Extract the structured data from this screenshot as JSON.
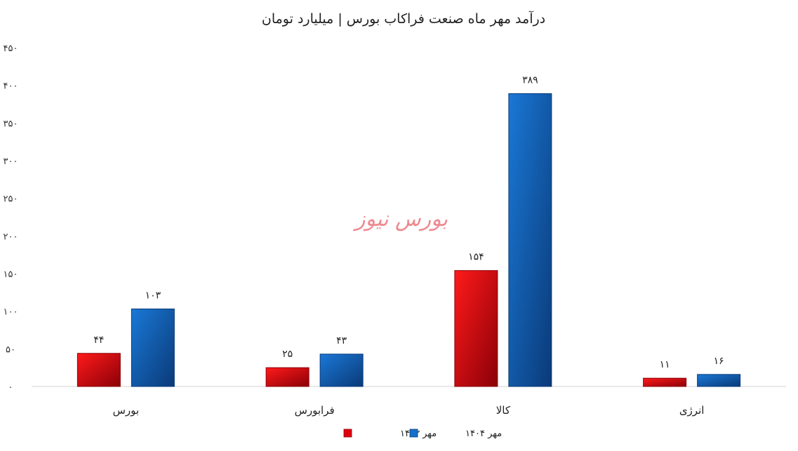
{
  "chart_data": {
    "type": "bar",
    "title": "درآمد مهر ماه صنعت فراکاب بورس | میلیارد تومان",
    "categories": [
      "بورس",
      "فرابورس",
      "کالا",
      "انرژی"
    ],
    "series": [
      {
        "name": "مهر ۱۴۰۳",
        "values": [
          44,
          25,
          154,
          11
        ],
        "labels": [
          "۴۴",
          "۲۵",
          "۱۵۴",
          "۱۱"
        ],
        "color": "#e00010",
        "dark": "#8a0008"
      },
      {
        "name": "مهر ۱۴۰۴",
        "values": [
          103,
          43,
          389,
          16
        ],
        "labels": [
          "۱۰۳",
          "۴۳",
          "۳۸۹",
          "۱۶"
        ],
        "color": "#1670c8",
        "dark": "#0a3a78"
      }
    ],
    "ylim": [
      0,
      450
    ],
    "yticks": [
      0,
      50,
      100,
      150,
      200,
      250,
      300,
      350,
      400,
      450
    ],
    "ytick_labels": [
      "۰",
      "۵۰",
      "۱۰۰",
      "۱۵۰",
      "۲۰۰",
      "۲۵۰",
      "۳۰۰",
      "۳۵۰",
      "۴۰۰",
      "۴۵۰"
    ],
    "grid": false,
    "legend": "bottom",
    "watermark": "بورس نیوز"
  }
}
